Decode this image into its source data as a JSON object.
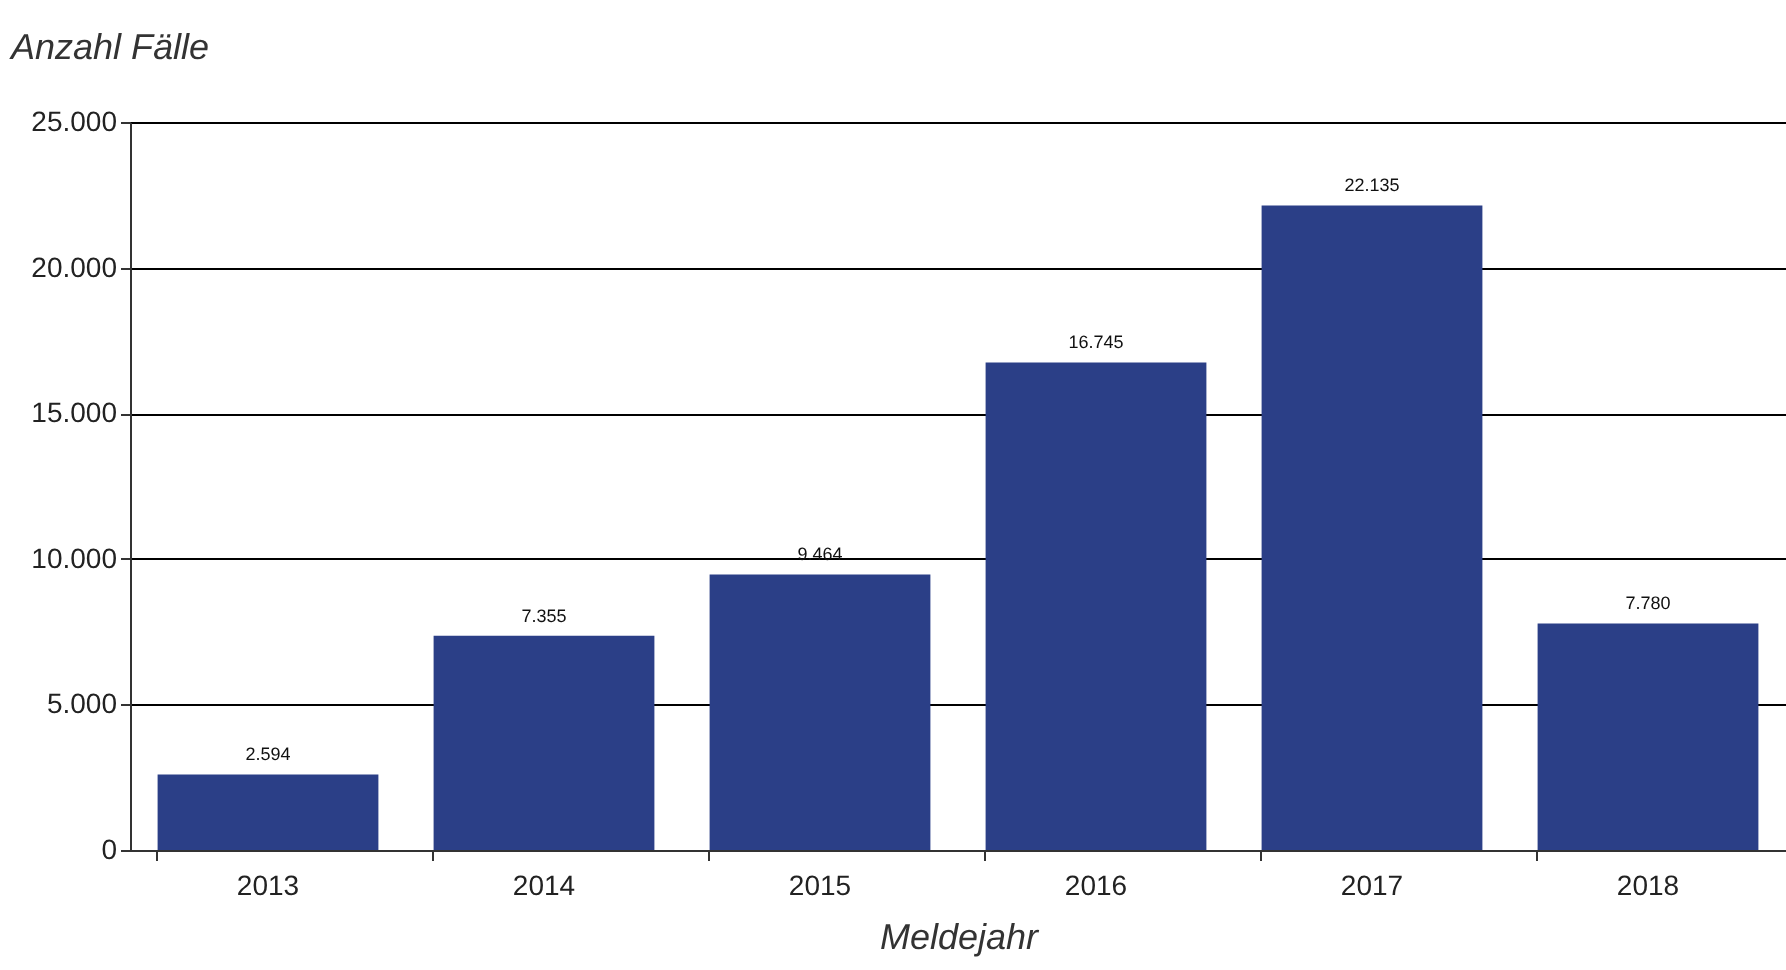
{
  "chart_data": {
    "type": "bar",
    "ylabel": "Anzahl Fälle",
    "xlabel": "Meldejahr",
    "categories": [
      "2013",
      "2014",
      "2015",
      "2016",
      "2017",
      "2018"
    ],
    "values": [
      2594,
      7355,
      9464,
      16745,
      22135,
      7780
    ],
    "value_labels": [
      "2.594",
      "7.355",
      "9.464",
      "16.745",
      "22.135",
      "7.780"
    ],
    "color": "#2b3f87",
    "grid": "y",
    "ylim": [
      0,
      25000
    ],
    "yticks": [
      0,
      {
        "value": 5000,
        "label": "5.000"
      },
      {
        "value": 10000,
        "label": "10.000"
      },
      {
        "value": 15000,
        "label": "15.000"
      },
      {
        "value": 20000,
        "label": "20.000"
      },
      {
        "value": 25000,
        "label": "25.000"
      }
    ]
  }
}
